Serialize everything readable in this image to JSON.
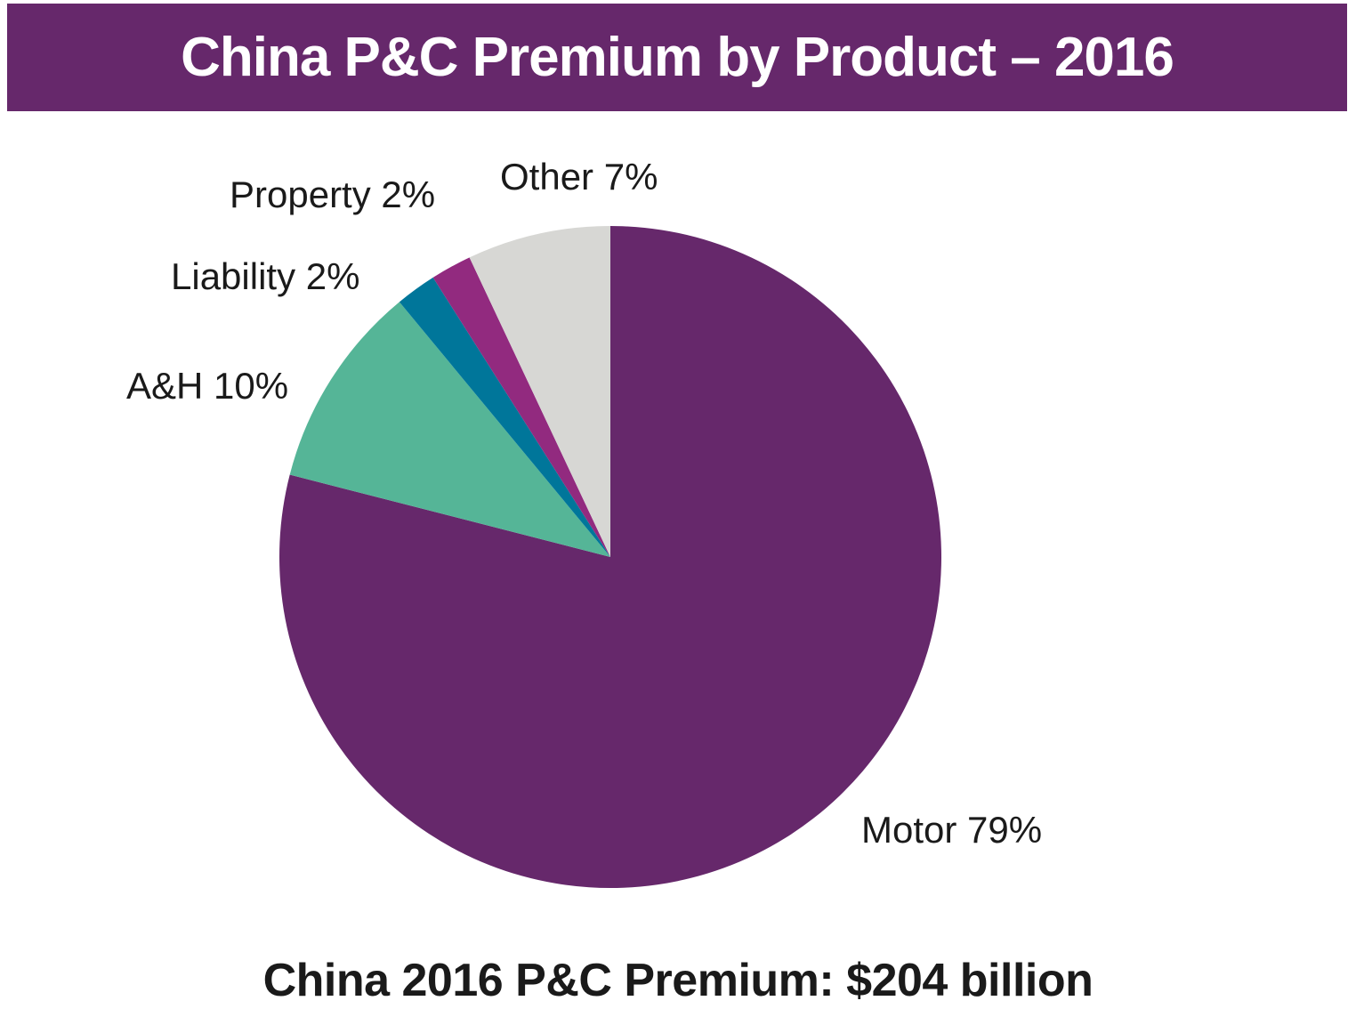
{
  "chart_data": {
    "type": "pie",
    "title": "China P&C Premium by Product – 2016",
    "subtitle": "China 2016 P&C Premium: $204 billion",
    "start_angle_deg": 0,
    "direction": "clockwise",
    "slices": [
      {
        "name": "Motor",
        "value": 79,
        "label": "Motor 79%",
        "color": "#66286b"
      },
      {
        "name": "A&H",
        "value": 10,
        "label": "A&H 10%",
        "color": "#55b597"
      },
      {
        "name": "Liability",
        "value": 2,
        "label": "Liability 2%",
        "color": "#00769a"
      },
      {
        "name": "Property",
        "value": 2,
        "label": "Property 2%",
        "color": "#922a7f"
      },
      {
        "name": "Other",
        "value": 7,
        "label": "Other 7%",
        "color": "#d7d7d4"
      }
    ]
  },
  "colors": {
    "banner": "#66286b",
    "title_text": "#ffffff",
    "label_text": "#1a1a1a"
  }
}
